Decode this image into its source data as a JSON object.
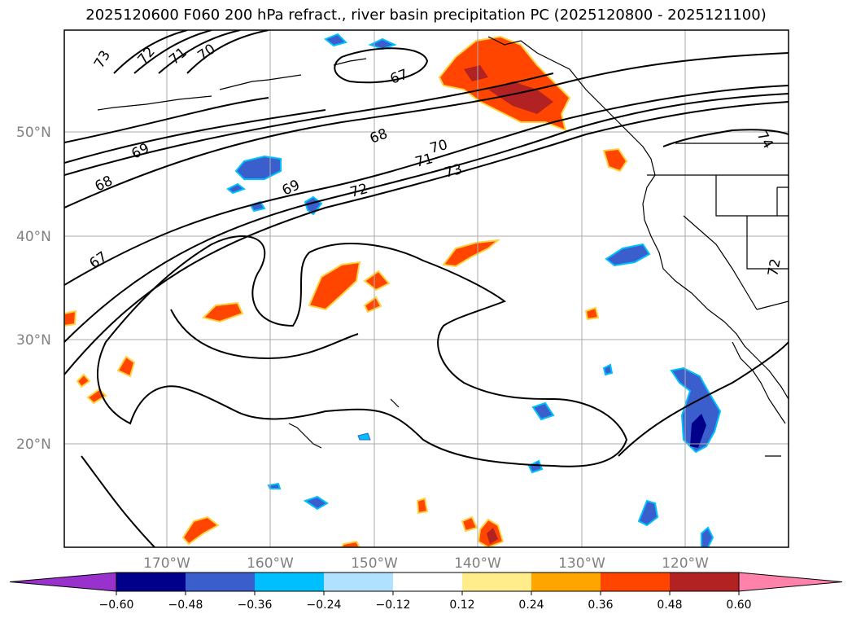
{
  "title": "2025120600 F060 200 hPa refract., river basin precipitation PC (2025120800 - 2025121100)",
  "latitude_labels": [
    "50°N",
    "40°N",
    "30°N",
    "20°N"
  ],
  "longitude_labels": [
    "170°W",
    "160°W",
    "150°W",
    "140°W",
    "130°W",
    "120°W"
  ],
  "contour_labels": [
    "73",
    "72",
    "71",
    "70",
    "67",
    "68",
    "69",
    "68",
    "69",
    "70",
    "71",
    "72",
    "73",
    "67",
    "74",
    "72"
  ],
  "colorbar": {
    "ticks": [
      "−0.60",
      "−0.48",
      "−0.36",
      "−0.24",
      "−0.12",
      "0.12",
      "0.24",
      "0.36",
      "0.48",
      "0.60"
    ],
    "colors": [
      "#9932cc",
      "#00008b",
      "#3a5fcd",
      "#00bfff",
      "#b0e2ff",
      "#ffffff",
      "#ffec8b",
      "#ffa500",
      "#ff4500",
      "#b22222",
      "#ff82ab"
    ]
  },
  "colors": {
    "contour": "#000000",
    "coast": "#000000",
    "grid": "#aaaaaa",
    "axis_label": "#808080"
  }
}
